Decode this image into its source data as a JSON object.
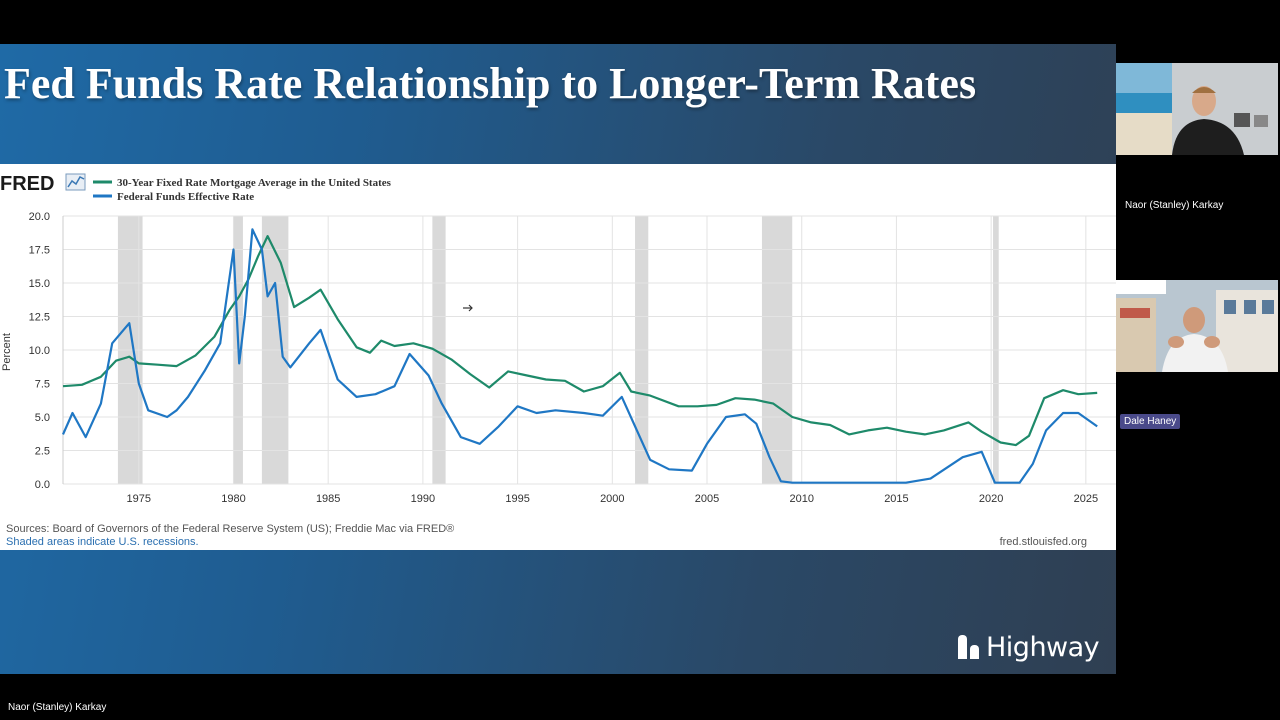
{
  "slide": {
    "title": "Fed Funds Rate Relationship to Longer-Term Rates",
    "logo_text": "Highway"
  },
  "participants": [
    {
      "name": "Naor (Stanley) Karkay"
    },
    {
      "name": "Dale Haney"
    }
  ],
  "bottom_label": "Naor (Stanley) Karkay",
  "colors": {
    "mortgage": "#1e8a6a",
    "fedfunds": "#1f77c4",
    "recession": "#d9d9d9"
  },
  "icons": [
    "fred-logo-icon",
    "fred-graph-icon",
    "cursor-arrow-icon",
    "highway-logo-icon"
  ],
  "chart_data": {
    "type": "line",
    "brand": "FRED",
    "ylabel": "Percent",
    "xlim": [
      1971,
      2025.8
    ],
    "ylim": [
      0,
      20
    ],
    "yticks": [
      "0.0",
      "2.5",
      "5.0",
      "7.5",
      "10.0",
      "12.5",
      "15.0",
      "17.5",
      "20.0"
    ],
    "xticks": [
      1975,
      1980,
      1985,
      1990,
      1995,
      2000,
      2005,
      2010,
      2015,
      2020,
      2025
    ],
    "grid": true,
    "legend_position": "top-left",
    "recessions": [
      [
        1973.9,
        1975.2
      ],
      [
        1980.0,
        1980.5
      ],
      [
        1981.5,
        1982.9
      ],
      [
        1990.5,
        1991.2
      ],
      [
        2001.2,
        2001.9
      ],
      [
        2007.9,
        2009.5
      ],
      [
        2020.1,
        2020.4
      ]
    ],
    "series": [
      {
        "name": "30-Year Fixed Rate Mortgage Average in the United States",
        "x": [
          1971,
          1972,
          1973,
          1973.8,
          1974.5,
          1975,
          1976,
          1977,
          1978,
          1979,
          1979.8,
          1980.3,
          1980.8,
          1981.3,
          1981.8,
          1982.5,
          1983.2,
          1984,
          1984.6,
          1985.5,
          1986.5,
          1987.2,
          1987.8,
          1988.5,
          1989.5,
          1990.5,
          1991.5,
          1992.5,
          1993.5,
          1994.5,
          1995.5,
          1996.5,
          1997.5,
          1998.5,
          1999.5,
          2000.4,
          2001,
          2002,
          2003.5,
          2004.5,
          2005.5,
          2006.5,
          2007.5,
          2008.5,
          2009.5,
          2010.5,
          2011.5,
          2012.5,
          2013.5,
          2014.5,
          2015.5,
          2016.5,
          2017.5,
          2018.8,
          2019.5,
          2020.5,
          2021.3,
          2022,
          2022.8,
          2023.8,
          2024.6,
          2025.6
        ],
        "y": [
          7.3,
          7.4,
          8.0,
          9.2,
          9.5,
          9.0,
          8.9,
          8.8,
          9.6,
          11.0,
          13.0,
          14.0,
          15.3,
          17.0,
          18.5,
          16.5,
          13.2,
          13.9,
          14.5,
          12.3,
          10.2,
          9.8,
          10.7,
          10.3,
          10.5,
          10.1,
          9.3,
          8.2,
          7.2,
          8.4,
          8.1,
          7.8,
          7.7,
          6.9,
          7.3,
          8.3,
          6.9,
          6.6,
          5.8,
          5.8,
          5.9,
          6.4,
          6.3,
          6.0,
          5.0,
          4.6,
          4.4,
          3.7,
          4.0,
          4.2,
          3.9,
          3.7,
          4.0,
          4.6,
          3.9,
          3.1,
          2.9,
          3.6,
          6.4,
          7.0,
          6.7,
          6.8
        ]
      },
      {
        "name": "Federal Funds Effective Rate",
        "x": [
          1971,
          1971.5,
          1972.2,
          1973,
          1973.6,
          1974.5,
          1975,
          1975.5,
          1976.5,
          1977,
          1977.6,
          1978.5,
          1979.3,
          1980,
          1980.3,
          1980.6,
          1981,
          1981.5,
          1981.8,
          1982.2,
          1982.6,
          1983,
          1984,
          1984.6,
          1985.5,
          1986.5,
          1987.5,
          1988.5,
          1989.3,
          1990.3,
          1991,
          1992,
          1993,
          1994,
          1995,
          1996,
          1997,
          1998.5,
          1999.5,
          2000.5,
          2001.3,
          2002,
          2003,
          2004.2,
          2005,
          2006,
          2007,
          2007.6,
          2008.3,
          2008.9,
          2009.5,
          2015.5,
          2016.8,
          2018.5,
          2019.5,
          2020.2,
          2021.5,
          2022.2,
          2022.9,
          2023.8,
          2024.6,
          2025.6
        ],
        "y": [
          3.7,
          5.3,
          3.5,
          6.0,
          10.5,
          12.0,
          7.5,
          5.5,
          5.0,
          5.5,
          6.5,
          8.5,
          10.5,
          17.5,
          9.0,
          12.5,
          19.0,
          17.5,
          14.0,
          15.0,
          9.5,
          8.7,
          10.5,
          11.5,
          7.8,
          6.5,
          6.7,
          7.3,
          9.7,
          8.1,
          6.0,
          3.5,
          3.0,
          4.3,
          5.8,
          5.3,
          5.5,
          5.3,
          5.1,
          6.5,
          4.0,
          1.8,
          1.1,
          1.0,
          3.0,
          5.0,
          5.2,
          4.5,
          2.0,
          0.2,
          0.1,
          0.1,
          0.4,
          2.0,
          2.4,
          0.1,
          0.1,
          1.5,
          4.0,
          5.3,
          5.3,
          4.3
        ]
      }
    ],
    "source_text": "Sources: Board of Governors of the Federal Reserve System (US); Freddie Mac via FRED®",
    "note_text": "Shaded areas indicate U.S. recessions.",
    "url_text": "fred.stlouisfed.org"
  }
}
